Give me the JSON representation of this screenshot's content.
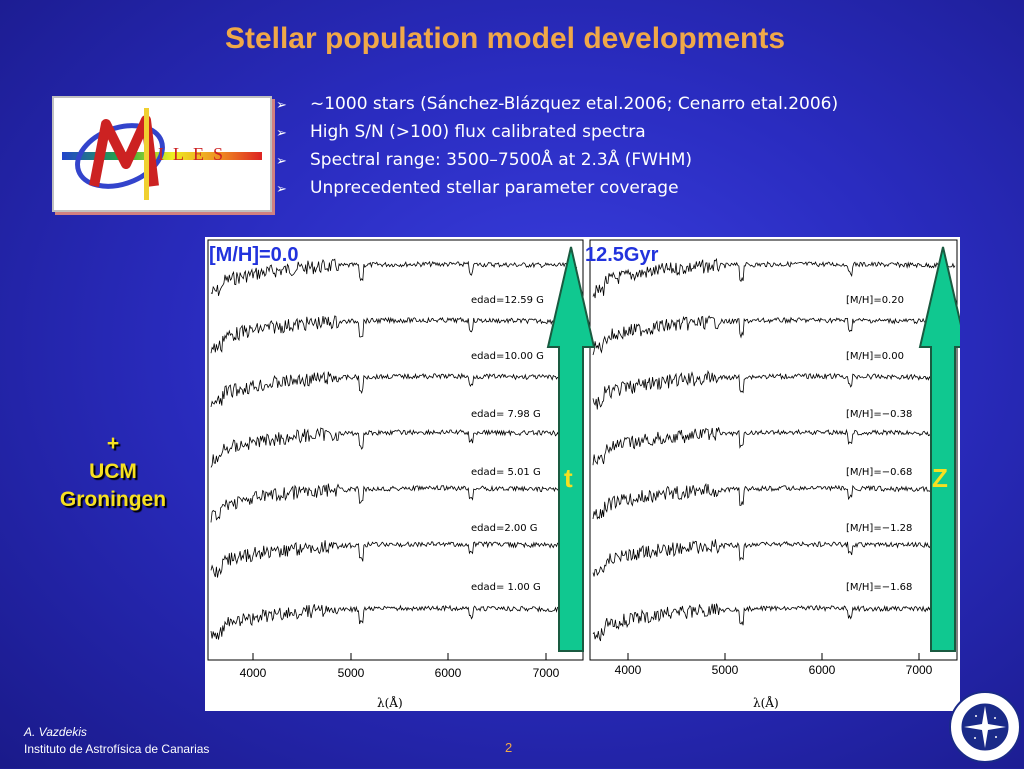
{
  "slide": {
    "title": "Stellar population model developments",
    "page_number": "2"
  },
  "logo": {
    "letters": "ILES",
    "m_letter": "M"
  },
  "bullets": [
    "~1000 stars (Sánchez-Blázquez etal.2006; Cenarro etal.2006)",
    "High S/N (>100) flux calibrated spectra",
    "Spectral range: 3500–7500Å at 2.3Å (FWHM)",
    "Unprecedented stellar parameter coverage"
  ],
  "side_text": {
    "plus": "+",
    "line1": "UCM",
    "line2": "Groningen"
  },
  "figure": {
    "left_header": "[M/H]=0.0",
    "right_header": "12.5Gyr",
    "left_labels": [
      "edad=12.59 G",
      "edad=10.00 G",
      "edad= 7.98 G",
      "edad= 5.01 G",
      "edad=2.00 G",
      "edad= 1.00 G"
    ],
    "right_labels": [
      "[M/H]=0.20",
      "[M/H]=0.00",
      "[M/H]=−0.38",
      "[M/H]=−0.68",
      "[M/H]=−1.28",
      "[M/H]=−1.68"
    ],
    "left_ticks": [
      "4000",
      "5000",
      "6000",
      "7000"
    ],
    "right_ticks": [
      "4000",
      "5000",
      "6000",
      "7000"
    ],
    "xlabel": "λ(Å)",
    "arrow_left_label": "t",
    "arrow_right_label": "Z"
  },
  "footer": {
    "author": "A. Vazdekis",
    "institute": "Instituto de Astrofísica de Canarias"
  },
  "colors": {
    "title": "#f0a848",
    "side_text": "#f6e020",
    "arrow": "#10c890"
  }
}
